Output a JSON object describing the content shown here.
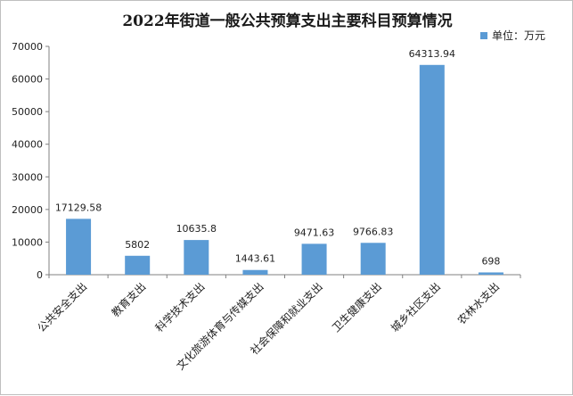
{
  "chart_data": {
    "type": "bar",
    "title": "2022年街道一般公共预算支出主要科目预算情况",
    "legend": {
      "label": "单位：万元",
      "position": "top-right"
    },
    "categories": [
      "公共安全支出",
      "教育支出",
      "科学技术支出",
      "文化旅游体育与传媒支出",
      "社会保障和就业支出",
      "卫生健康支出",
      "城乡社区支出",
      "农林水支出"
    ],
    "values": [
      17129.58,
      5802,
      10635.8,
      1443.61,
      9471.63,
      9766.83,
      64313.94,
      698
    ],
    "data_labels": [
      "17129.58",
      "5802",
      "10635.8",
      "1443.61",
      "9471.63",
      "9766.83",
      "64313.94",
      "698"
    ],
    "yticks": [
      "0",
      "10000",
      "20000",
      "30000",
      "40000",
      "50000",
      "60000",
      "70000"
    ],
    "ylim": [
      0,
      70000
    ],
    "grid": false,
    "bar_color": "#5b9bd5"
  }
}
